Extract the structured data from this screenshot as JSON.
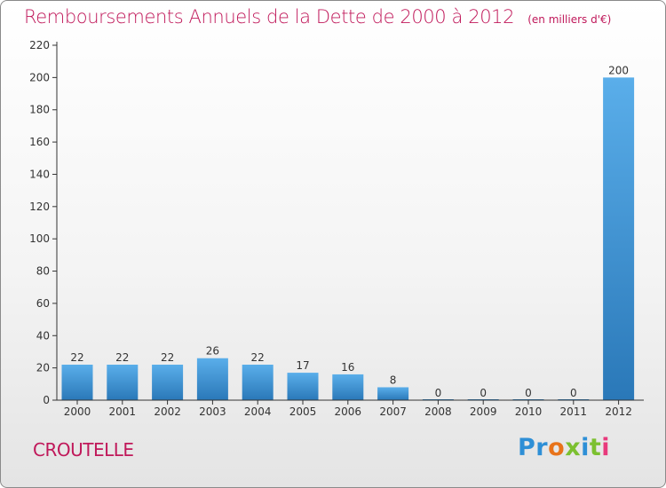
{
  "title": "Remboursements Annuels de la Dette de 2000 à 2012",
  "subtitle": "(en milliers d'€)",
  "location": "CROUTELLE",
  "logo": {
    "text": "Proxiti",
    "letters": [
      {
        "ch": "P",
        "color": "#2e8fd6"
      },
      {
        "ch": "r",
        "color": "#2e8fd6"
      },
      {
        "ch": "o",
        "color": "#e8731a"
      },
      {
        "ch": "x",
        "color": "#7cc030"
      },
      {
        "ch": "i",
        "color": "#2e8fd6"
      },
      {
        "ch": "t",
        "color": "#7cc030"
      },
      {
        "ch": "i",
        "color": "#e83a7c"
      }
    ]
  },
  "colors": {
    "accent": "#c0185a",
    "bar_top": "#5aaeea",
    "bar_bottom": "#2a78b8",
    "axis": "#333333"
  },
  "chart_data": {
    "type": "bar",
    "title": "Remboursements Annuels de la Dette de 2000 à 2012",
    "subtitle": "(en milliers d'€)",
    "xlabel": "",
    "ylabel": "",
    "categories": [
      "2000",
      "2001",
      "2002",
      "2003",
      "2004",
      "2005",
      "2006",
      "2007",
      "2008",
      "2009",
      "2010",
      "2011",
      "2012"
    ],
    "values": [
      22,
      22,
      22,
      26,
      22,
      17,
      16,
      8,
      0,
      0,
      0,
      0,
      200
    ],
    "ylim": [
      0,
      220
    ],
    "yticks": [
      0,
      20,
      40,
      60,
      80,
      100,
      120,
      140,
      160,
      180,
      200,
      220
    ],
    "data_labels": true,
    "grid": false
  }
}
